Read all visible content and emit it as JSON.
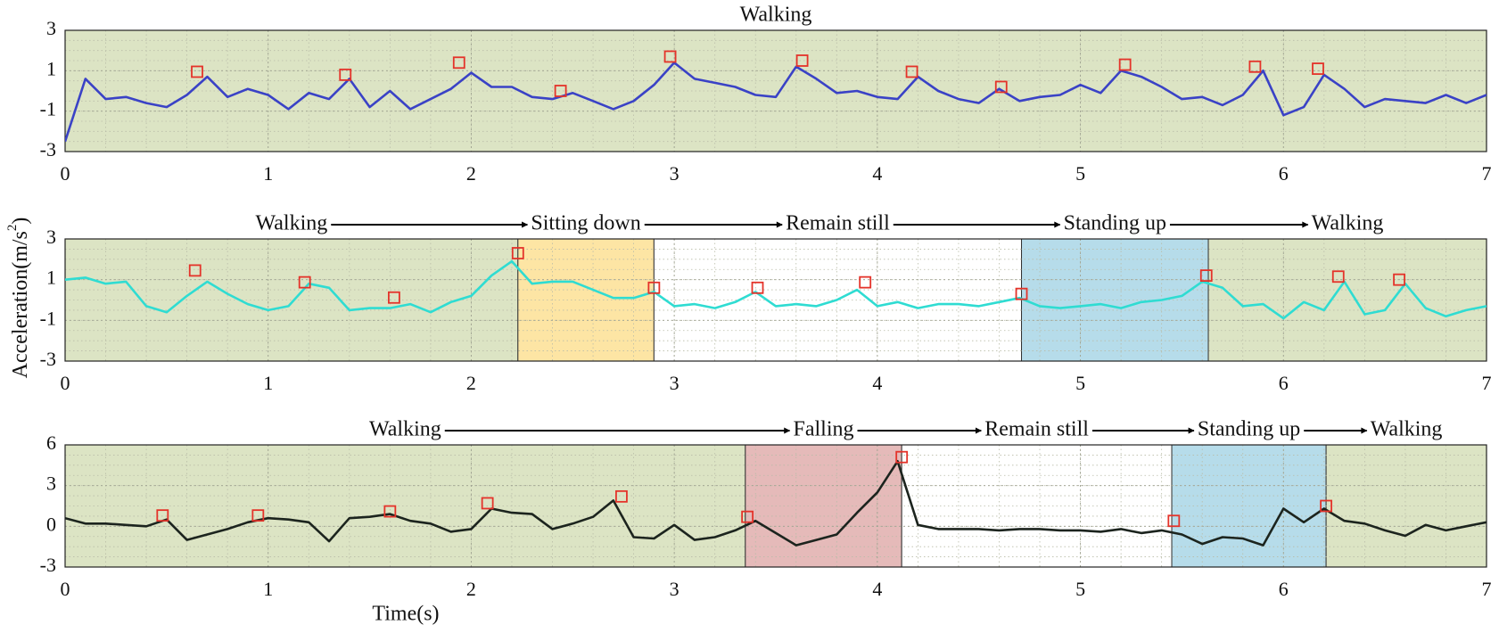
{
  "figure": {
    "xlabel": "Time(s)",
    "ylabel": {
      "text": "Acceleration(m/s",
      "superscript": "2",
      "suffix": ")"
    }
  },
  "chart_data": [
    {
      "type": "line",
      "color": "#3a42c6",
      "xlim": [
        0,
        7
      ],
      "xticks": [
        0,
        1,
        2,
        3,
        4,
        5,
        6,
        7
      ],
      "ylim": [
        -3,
        3
      ],
      "yticks": [
        -3,
        -1,
        1,
        3
      ],
      "grid": true,
      "minor_grid": true,
      "phases": [
        {
          "label": "Walking",
          "x": [
            0,
            7
          ],
          "color": "#dce4c4"
        }
      ],
      "x": [
        0,
        0.1,
        0.2,
        0.3,
        0.4,
        0.5,
        0.6,
        0.7,
        0.8,
        0.9,
        1,
        1.1,
        1.2,
        1.3,
        1.4,
        1.5,
        1.6,
        1.7,
        1.8,
        1.9,
        2,
        2.1,
        2.2,
        2.3,
        2.4,
        2.5,
        2.6,
        2.7,
        2.8,
        2.9,
        3,
        3.1,
        3.2,
        3.3,
        3.4,
        3.5,
        3.6,
        3.7,
        3.8,
        3.9,
        4,
        4.1,
        4.2,
        4.3,
        4.4,
        4.5,
        4.6,
        4.7,
        4.8,
        4.9,
        5,
        5.1,
        5.2,
        5.3,
        5.4,
        5.5,
        5.6,
        5.7,
        5.8,
        5.9,
        6,
        6.1,
        6.2,
        6.3,
        6.4,
        6.5,
        6.6,
        6.7,
        6.8,
        6.9,
        7
      ],
      "values": [
        -2.5,
        0.6,
        -0.4,
        -0.3,
        -0.6,
        -0.8,
        -0.2,
        0.7,
        -0.3,
        0.1,
        -0.2,
        -0.9,
        -0.1,
        -0.4,
        0.6,
        -0.8,
        0.0,
        -0.9,
        -0.4,
        0.1,
        0.9,
        0.2,
        0.2,
        -0.3,
        -0.4,
        -0.1,
        -0.5,
        -0.9,
        -0.5,
        0.3,
        1.4,
        0.6,
        0.4,
        0.2,
        -0.2,
        -0.3,
        1.2,
        0.6,
        -0.1,
        0.0,
        -0.3,
        -0.4,
        0.7,
        0.0,
        -0.4,
        -0.6,
        0.1,
        -0.5,
        -0.3,
        -0.2,
        0.3,
        -0.1,
        1.0,
        0.7,
        0.2,
        -0.4,
        -0.3,
        -0.7,
        -0.2,
        1.0,
        -1.2,
        -0.8,
        0.8,
        0.1,
        -0.8,
        -0.4,
        -0.5,
        -0.6,
        -0.2,
        -0.6,
        -0.2
      ],
      "markers": {
        "color": "#e4332a",
        "x": [
          0.65,
          1.38,
          1.94,
          2.44,
          2.98,
          3.63,
          4.17,
          4.61,
          5.22,
          5.86,
          6.17
        ],
        "values": [
          0.95,
          0.8,
          1.4,
          0.0,
          1.7,
          1.5,
          0.95,
          0.2,
          1.3,
          1.2,
          1.1
        ]
      }
    },
    {
      "type": "line",
      "color": "#2fdcd2",
      "xlim": [
        0,
        7
      ],
      "xticks": [
        0,
        1,
        2,
        3,
        4,
        5,
        6,
        7
      ],
      "ylim": [
        -3,
        3
      ],
      "yticks": [
        -3,
        -1,
        1,
        3
      ],
      "grid": true,
      "minor_grid": true,
      "phases": [
        {
          "label": "Walking",
          "x": [
            0,
            2.23
          ],
          "color": "#dce4c4"
        },
        {
          "label": "Sitting down",
          "x": [
            2.23,
            2.9
          ],
          "color": "#fde5a4"
        },
        {
          "label": "Remain still",
          "x": [
            2.9,
            4.71
          ],
          "color": "#ffffff"
        },
        {
          "label": "Standing up",
          "x": [
            4.71,
            5.63
          ],
          "color": "#b6dcea"
        },
        {
          "label": "Walking",
          "x": [
            5.63,
            7
          ],
          "color": "#dce4c4"
        }
      ],
      "x": [
        0,
        0.1,
        0.2,
        0.3,
        0.4,
        0.5,
        0.6,
        0.7,
        0.8,
        0.9,
        1,
        1.1,
        1.2,
        1.3,
        1.4,
        1.5,
        1.6,
        1.7,
        1.8,
        1.9,
        2,
        2.1,
        2.2,
        2.3,
        2.4,
        2.5,
        2.6,
        2.7,
        2.8,
        2.9,
        3,
        3.1,
        3.2,
        3.3,
        3.4,
        3.5,
        3.6,
        3.7,
        3.8,
        3.9,
        4,
        4.1,
        4.2,
        4.3,
        4.4,
        4.5,
        4.6,
        4.7,
        4.8,
        4.9,
        5,
        5.1,
        5.2,
        5.3,
        5.4,
        5.5,
        5.6,
        5.7,
        5.8,
        5.9,
        6,
        6.1,
        6.2,
        6.3,
        6.4,
        6.5,
        6.6,
        6.7,
        6.8,
        6.9,
        7
      ],
      "values": [
        1.0,
        1.1,
        0.8,
        0.9,
        -0.3,
        -0.6,
        0.2,
        0.9,
        0.3,
        -0.2,
        -0.5,
        -0.3,
        0.8,
        0.6,
        -0.5,
        -0.4,
        -0.4,
        -0.2,
        -0.6,
        -0.1,
        0.2,
        1.2,
        1.9,
        0.8,
        0.9,
        0.9,
        0.5,
        0.1,
        0.1,
        0.4,
        -0.3,
        -0.2,
        -0.4,
        -0.1,
        0.4,
        -0.3,
        -0.2,
        -0.3,
        0.0,
        0.5,
        -0.3,
        -0.1,
        -0.4,
        -0.2,
        -0.2,
        -0.3,
        -0.1,
        0.1,
        -0.3,
        -0.4,
        -0.3,
        -0.2,
        -0.4,
        -0.1,
        0.0,
        0.2,
        0.9,
        0.6,
        -0.3,
        -0.2,
        -0.9,
        -0.1,
        -0.5,
        0.9,
        -0.7,
        -0.5,
        0.8,
        -0.4,
        -0.8,
        -0.5,
        -0.3
      ],
      "markers": {
        "color": "#e4332a",
        "x": [
          0.64,
          1.18,
          1.62,
          2.23,
          2.9,
          3.41,
          3.94,
          4.71,
          5.62,
          6.27,
          6.57
        ],
        "values": [
          1.45,
          0.87,
          0.12,
          2.3,
          0.6,
          0.6,
          0.87,
          0.3,
          1.2,
          1.15,
          1.0
        ]
      }
    },
    {
      "type": "line",
      "color": "#1c241e",
      "xlim": [
        0,
        7
      ],
      "xticks": [
        0,
        1,
        2,
        3,
        4,
        5,
        6,
        7
      ],
      "ylim": [
        -3,
        6
      ],
      "yticks": [
        -3,
        0,
        3,
        6
      ],
      "grid": true,
      "minor_grid": true,
      "phases": [
        {
          "label": "Walking",
          "x": [
            0,
            3.35
          ],
          "color": "#dce4c4"
        },
        {
          "label": "Falling",
          "x": [
            3.35,
            4.12
          ],
          "color": "#e5bab9"
        },
        {
          "label": "Remain still",
          "x": [
            4.12,
            5.45
          ],
          "color": "#ffffff"
        },
        {
          "label": "Standing up",
          "x": [
            5.45,
            6.21
          ],
          "color": "#b6dcea"
        },
        {
          "label": "Walking",
          "x": [
            6.21,
            7
          ],
          "color": "#dce4c4"
        }
      ],
      "x": [
        0,
        0.1,
        0.2,
        0.3,
        0.4,
        0.5,
        0.6,
        0.7,
        0.8,
        0.9,
        1,
        1.1,
        1.2,
        1.3,
        1.4,
        1.5,
        1.6,
        1.7,
        1.8,
        1.9,
        2,
        2.1,
        2.2,
        2.3,
        2.4,
        2.5,
        2.6,
        2.7,
        2.8,
        2.9,
        3,
        3.1,
        3.2,
        3.3,
        3.4,
        3.5,
        3.6,
        3.7,
        3.8,
        3.9,
        4,
        4.1,
        4.2,
        4.3,
        4.4,
        4.5,
        4.6,
        4.7,
        4.8,
        4.9,
        5,
        5.1,
        5.2,
        5.3,
        5.4,
        5.5,
        5.6,
        5.7,
        5.8,
        5.9,
        6,
        6.1,
        6.2,
        6.3,
        6.4,
        6.5,
        6.6,
        6.7,
        6.8,
        6.9,
        7
      ],
      "values": [
        0.6,
        0.2,
        0.2,
        0.1,
        0.0,
        0.5,
        -1.0,
        -0.6,
        -0.2,
        0.3,
        0.6,
        0.5,
        0.3,
        -1.1,
        0.6,
        0.7,
        0.9,
        0.4,
        0.2,
        -0.4,
        -0.2,
        1.3,
        1.0,
        0.9,
        -0.2,
        0.2,
        0.7,
        1.9,
        -0.8,
        -0.9,
        0.1,
        -1.0,
        -0.8,
        -0.3,
        0.4,
        -0.5,
        -1.4,
        -1.0,
        -0.6,
        1.0,
        2.5,
        4.8,
        0.1,
        -0.2,
        -0.2,
        -0.2,
        -0.3,
        -0.2,
        -0.2,
        -0.3,
        -0.3,
        -0.4,
        -0.2,
        -0.5,
        -0.3,
        -0.6,
        -1.3,
        -0.8,
        -0.9,
        -1.4,
        1.3,
        0.3,
        1.3,
        0.4,
        0.2,
        -0.3,
        -0.7,
        0.1,
        -0.3,
        0.0,
        0.3
      ],
      "markers": {
        "color": "#e4332a",
        "x": [
          0.48,
          0.95,
          1.6,
          2.08,
          2.74,
          3.36,
          4.12,
          5.46,
          6.21
        ],
        "values": [
          0.8,
          0.8,
          1.1,
          1.7,
          2.2,
          0.7,
          5.1,
          0.4,
          1.5
        ]
      }
    }
  ]
}
